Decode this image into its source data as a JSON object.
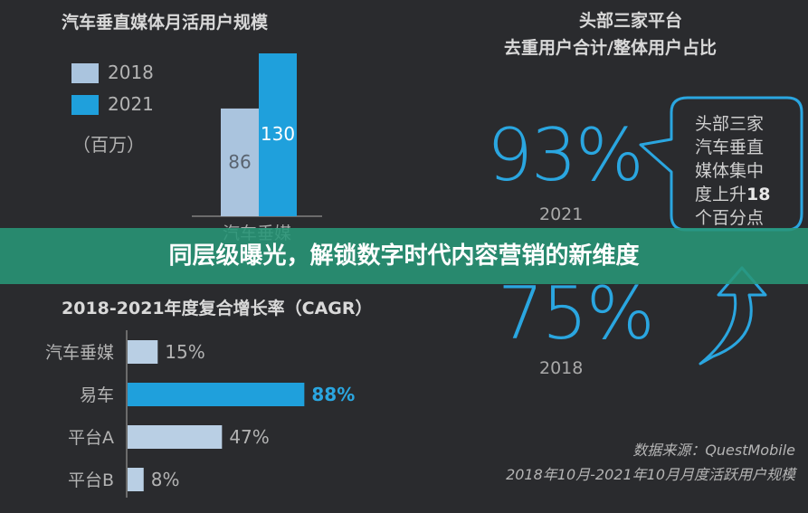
{
  "banner": {
    "text": "同层级曝光，解锁数字时代内容营销的新维度"
  },
  "chart_data": [
    {
      "type": "bar",
      "title": "汽车垂直媒体月活用户规模",
      "unit": "（百万）",
      "categories": [
        "汽车垂媒"
      ],
      "series": [
        {
          "name": "2018",
          "values": [
            86
          ],
          "color": "#aac4de"
        },
        {
          "name": "2021",
          "values": [
            130
          ],
          "color": "#1fa0dc"
        }
      ],
      "ylim": [
        0,
        130
      ]
    },
    {
      "type": "bar",
      "orientation": "horizontal",
      "title": "2018-2021年度复合增长率（CAGR）",
      "categories": [
        "汽车垂媒",
        "易车",
        "平台A",
        "平台B"
      ],
      "values": [
        15,
        88,
        47,
        8
      ],
      "value_labels": [
        "15%",
        "88%",
        "47%",
        "8%"
      ],
      "colors": [
        "#b9cfe4",
        "#1fa0dc",
        "#b9cfe4",
        "#b9cfe4"
      ],
      "xlim": [
        0,
        100
      ]
    }
  ],
  "right_panel": {
    "title_line1": "头部三家平台",
    "title_line2": "去重用户合计/整体用户占比",
    "stat_2021": {
      "value": "93%",
      "year": "2021"
    },
    "stat_2018": {
      "value": "75%",
      "year": "2018"
    },
    "bubble": {
      "line1": "头部三家",
      "line2": "汽车垂直",
      "line3": "媒体集中",
      "line4_prefix": "度上升",
      "line4_num": "18",
      "line5": "个百分点"
    }
  },
  "source": {
    "line1": "数据来源：QuestMobile",
    "line2": "2018年10月-2021年10月月度活跃用户规模"
  },
  "colors": {
    "accent": "#1fa0dc",
    "light_bar": "#b9cfe4",
    "banner": "#2a9a7a"
  }
}
